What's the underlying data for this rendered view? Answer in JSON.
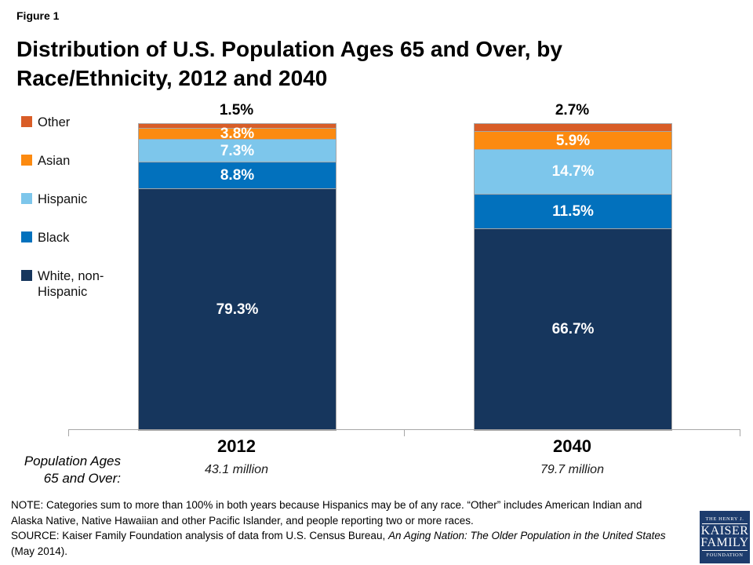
{
  "figure_label": "Figure 1",
  "title_line1": "Distribution of U.S. Population Ages 65 and Over, by",
  "title_line2": "Race/Ethnicity, 2012 and 2040",
  "chart_data": {
    "type": "bar",
    "stacked": true,
    "normalized": true,
    "unit": "%",
    "title": "Distribution of U.S. Population Ages 65 and Over, by Race/Ethnicity, 2012 and 2040",
    "categories": [
      "2012",
      "2040"
    ],
    "category_sublabels": [
      "43.1 million",
      "79.7 million"
    ],
    "series": [
      {
        "name": "Other",
        "color": "#D95D27",
        "values": [
          1.5,
          2.7
        ],
        "label_position": "above"
      },
      {
        "name": "Asian",
        "color": "#FC8A10",
        "values": [
          3.8,
          5.9
        ],
        "label_position": "inside"
      },
      {
        "name": "Hispanic",
        "color": "#7DC6EB",
        "values": [
          7.3,
          14.7
        ],
        "label_position": "inside"
      },
      {
        "name": "Black",
        "color": "#0271BD",
        "values": [
          8.8,
          11.5
        ],
        "label_position": "inside"
      },
      {
        "name": "White, non-Hispanic",
        "color": "#16365D",
        "values": [
          79.3,
          66.7
        ],
        "label_position": "inside"
      }
    ],
    "legend_position": "left",
    "grid": false,
    "axis_caption_line1": "Population Ages",
    "axis_caption_line2": "65 and Over:"
  },
  "note": {
    "note_text": "NOTE: Categories sum to more than 100% in both years because Hispanics may be of any race. “Other” includes American Indian and Alaska Native, Native Hawaiian and other Pacific Islander, and people reporting two or more races.",
    "source_prefix": "SOURCE: Kaiser Family Foundation analysis of data from U.S. Census Bureau, ",
    "source_italic": "An Aging Nation: The Older Population in the United States",
    "source_suffix": " (May 2014)."
  },
  "logo": {
    "line1": "THE HENRY J.",
    "line2": "KAISER",
    "line3": "FAMILY",
    "line4": "FOUNDATION"
  }
}
